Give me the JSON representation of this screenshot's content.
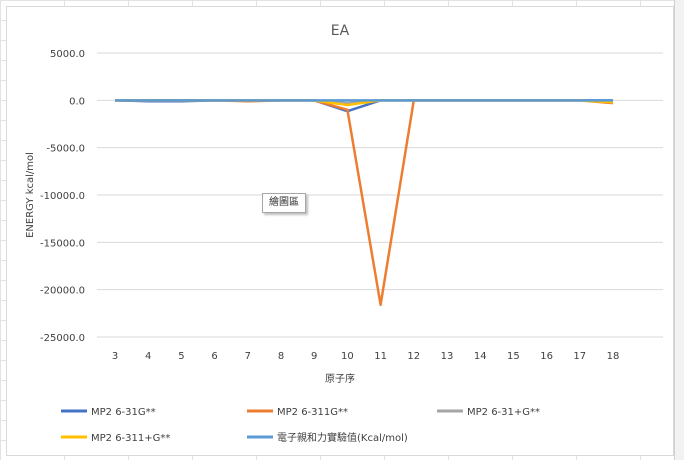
{
  "tooltip": "繪圖區",
  "chart_data": {
    "type": "line",
    "title": "EA",
    "xlabel": "原子序",
    "ylabel": "ENERGY kcal/mol",
    "categories": [
      "3",
      "4",
      "5",
      "6",
      "7",
      "8",
      "9",
      "10",
      "11",
      "12",
      "13",
      "14",
      "15",
      "16",
      "17",
      "18"
    ],
    "ylim": [
      -25000,
      5000
    ],
    "yticks": [
      "5000.0",
      "0.0",
      "-5000.0",
      "-10000.0",
      "-15000.0",
      "-20000.0",
      "-25000.0"
    ],
    "ytick_values": [
      5000,
      0,
      -5000,
      -10000,
      -15000,
      -20000,
      -25000
    ],
    "grid": true,
    "legend_position": "bottom",
    "series": [
      {
        "name": "MP2 6-31G**",
        "color": "#4472c4",
        "values": [
          0,
          -100,
          -100,
          0,
          -50,
          0,
          0,
          -1150,
          0,
          0,
          0,
          0,
          0,
          0,
          0,
          0
        ]
      },
      {
        "name": "MP2 6-311G**",
        "color": "#ed7d31",
        "values": [
          0,
          0,
          0,
          0,
          -100,
          0,
          0,
          -1000,
          -21600,
          0,
          0,
          0,
          0,
          0,
          0,
          -300
        ]
      },
      {
        "name": "MP2 6-31+G**",
        "color": "#a5a5a5",
        "values": [
          0,
          0,
          0,
          0,
          0,
          0,
          0,
          -300,
          0,
          0,
          0,
          0,
          0,
          0,
          0,
          -100
        ]
      },
      {
        "name": "MP2 6-311+G**",
        "color": "#ffc000",
        "values": [
          0,
          0,
          0,
          0,
          0,
          0,
          0,
          -500,
          0,
          0,
          0,
          0,
          0,
          0,
          0,
          -200
        ]
      },
      {
        "name": "電子親和力實驗值(Kcal/mol)",
        "color": "#5b9bd5",
        "values": [
          0,
          0,
          0,
          0,
          0,
          0,
          0,
          0,
          0,
          0,
          0,
          0,
          0,
          0,
          0,
          0
        ]
      }
    ]
  }
}
